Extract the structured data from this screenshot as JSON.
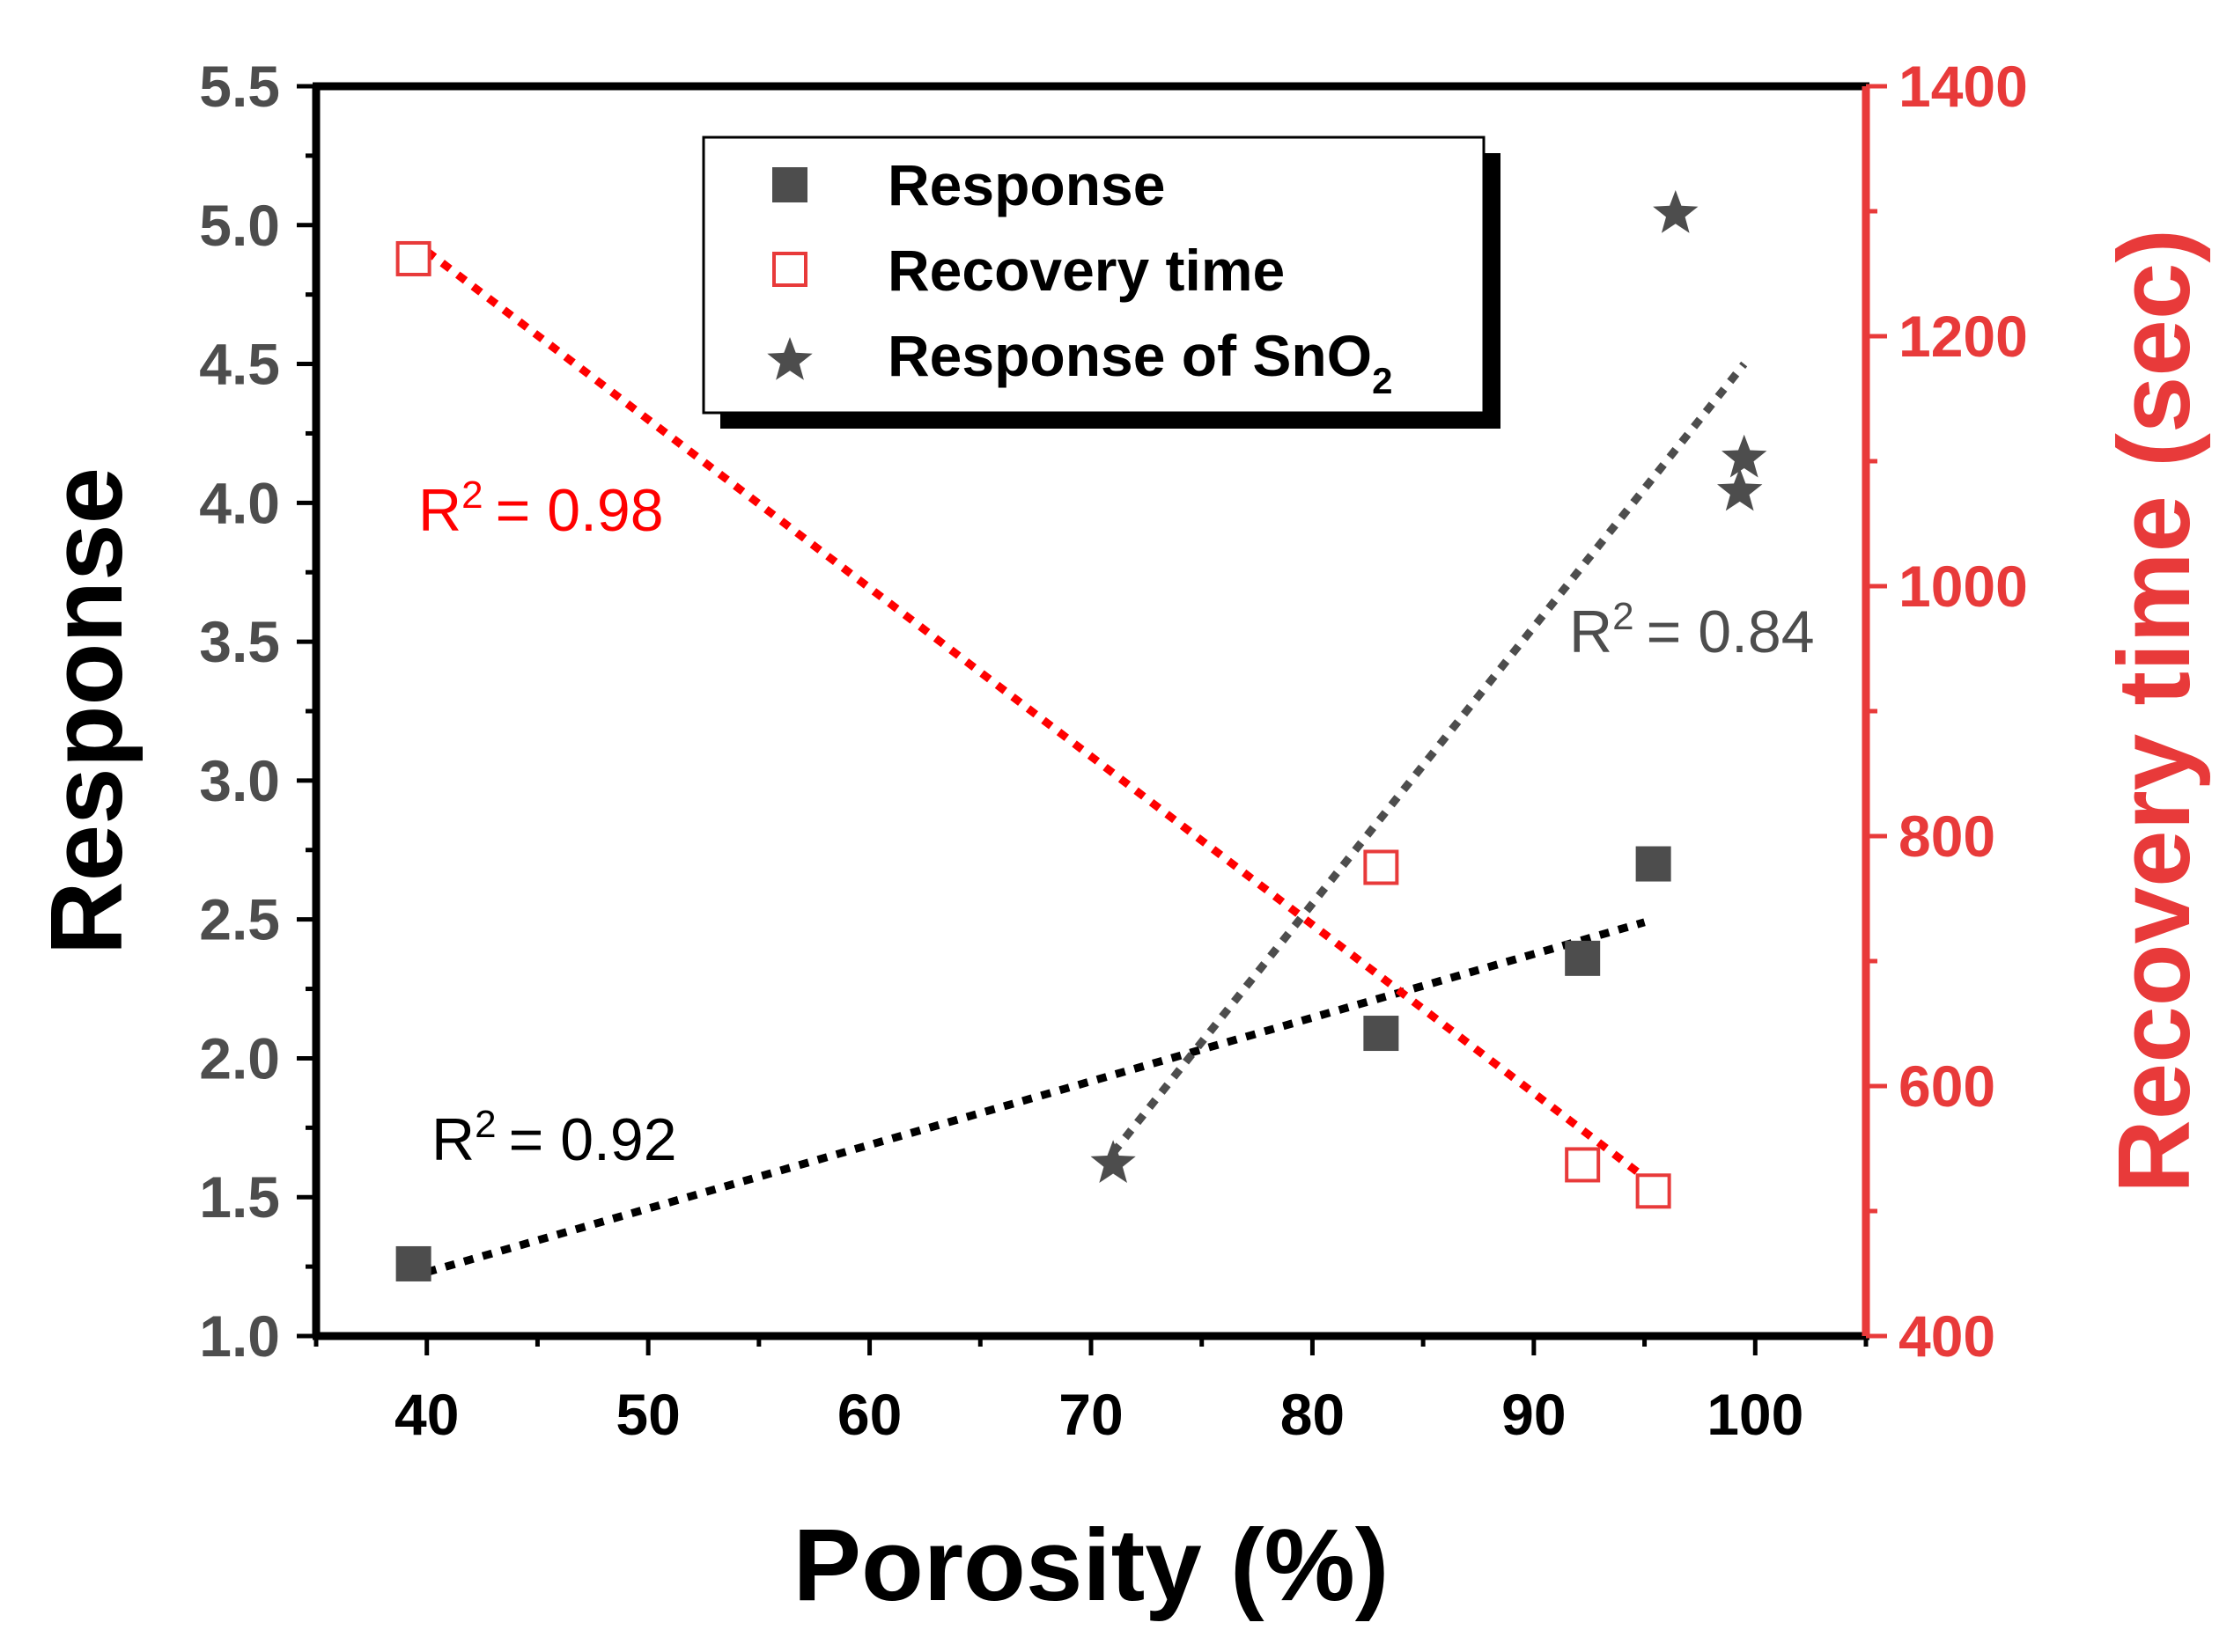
{
  "chart_data": {
    "type": "scatter",
    "xlabel": "Porosity (%)",
    "ylabel": "Response",
    "y2label": "Recovery time (sec)",
    "xlim": [
      35,
      105
    ],
    "ylim": [
      1.0,
      5.5
    ],
    "y2lim": [
      400,
      1400
    ],
    "x_ticks": [
      40,
      50,
      60,
      70,
      80,
      90,
      100
    ],
    "x_tick_labels": [
      "40",
      "50",
      "60",
      "70",
      "80",
      "90",
      "100"
    ],
    "y_ticks": [
      1.0,
      1.5,
      2.0,
      2.5,
      3.0,
      3.5,
      4.0,
      4.5,
      5.0,
      5.5
    ],
    "y_tick_labels": [
      "1.0",
      "1.5",
      "2.0",
      "2.5",
      "3.0",
      "3.5",
      "4.0",
      "4.5",
      "5.0",
      "5.5"
    ],
    "y2_ticks": [
      400,
      600,
      800,
      1000,
      1200,
      1400
    ],
    "y2_tick_labels": [
      "400",
      "600",
      "800",
      "1000",
      "1200",
      "1400"
    ],
    "colors": {
      "response": "#4d4d4d",
      "recovery": "#e83a3a",
      "sno2": "#4d4d4d",
      "fit_response": "#000000",
      "fit_recovery": "#ff0000",
      "fit_sno2": "#4d4d4d",
      "right_axis": "#e83a3a"
    },
    "series": [
      {
        "name": "Response",
        "axis": "left",
        "marker": "filled-square",
        "x": [
          39.4,
          83.1,
          92.2,
          95.4
        ],
        "y": [
          1.26,
          2.09,
          2.36,
          2.7
        ],
        "fit": {
          "x": [
            40,
            95
          ],
          "y": [
            1.23,
            2.49
          ],
          "r2_label": "= 0.92"
        }
      },
      {
        "name": "Recovery time",
        "axis": "right",
        "marker": "open-square",
        "x": [
          39.4,
          83.1,
          92.2,
          95.4
        ],
        "y": [
          1262,
          775,
          537,
          516
        ],
        "fit": {
          "x": [
            40,
            95
          ],
          "y": [
            1268,
            527
          ],
          "r2_label": "= 0.98"
        }
      },
      {
        "name": "Response of SnO",
        "name_subscript": "2",
        "axis": "left",
        "marker": "star",
        "x": [
          71.0,
          96.4,
          99.3,
          99.5
        ],
        "y": [
          1.63,
          5.05,
          4.05,
          4.17
        ],
        "fit": {
          "x": [
            71,
            99.5
          ],
          "y": [
            1.66,
            4.5
          ],
          "r2_label": "= 0.84"
        }
      }
    ],
    "annotations": [
      {
        "series": 0,
        "r_symbol": "R",
        "superscript": "2",
        "text": "= 0.92"
      },
      {
        "series": 1,
        "r_symbol": "R",
        "superscript": "2",
        "text": "= 0.98"
      },
      {
        "series": 2,
        "r_symbol": "R",
        "superscript": "2",
        "text": "= 0.84"
      }
    ]
  }
}
